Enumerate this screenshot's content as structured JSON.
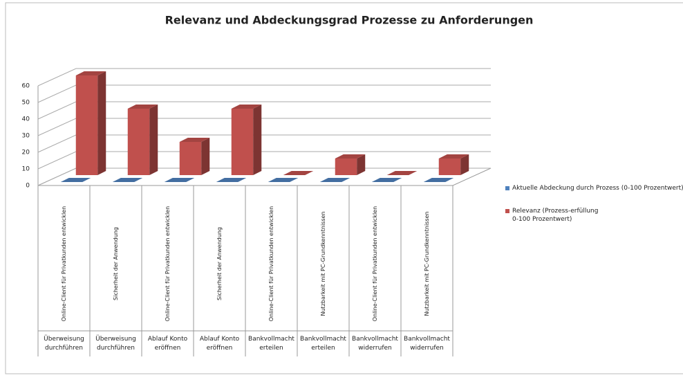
{
  "chart_data": {
    "type": "bar3d",
    "title": "Relevanz und Abdeckungsgrad Prozesse zu Anforderungen",
    "categories": [
      "Online-Client für Privatkunden entwicklen",
      "Sicherheit der Anwendung",
      "Online-Client für Privatkunden entwicklen",
      "Sicherheit der Anwendung",
      "Online-Client für Privatkunden entwicklen",
      "Nutzbarkeit mit PC-Grundkenntnissen",
      "Online-Client für Privatkunden entwicklen",
      "Nutzbarkeit mit PC-Grundkenntnissen"
    ],
    "groups": [
      "Überweisung durchführen",
      "Überweisung durchführen",
      "Ablauf Konto eröffnen",
      "Ablauf Konto eröffnen",
      "Bankvollmacht erteilen",
      "Bankvollmacht erteilen",
      "Bankvollmacht widerrufen",
      "Bankvollmacht widerrufen"
    ],
    "series": [
      {
        "name": "Aktuelle Abdeckung durch Prozess (0-100 Prozentwert)",
        "color": "#4f81bd",
        "values": [
          0,
          0,
          0,
          0,
          0,
          0,
          0,
          0
        ]
      },
      {
        "name": "Relevanz (Prozess-erfüllung 0-100 Prozentwert)",
        "color": "#c0504d",
        "values": [
          60,
          40,
          20,
          40,
          0,
          10,
          0,
          10
        ]
      }
    ],
    "ylim": [
      0,
      60
    ],
    "yticks": [
      0,
      10,
      20,
      30,
      40,
      50,
      60
    ],
    "grid": true,
    "legend": "right"
  }
}
